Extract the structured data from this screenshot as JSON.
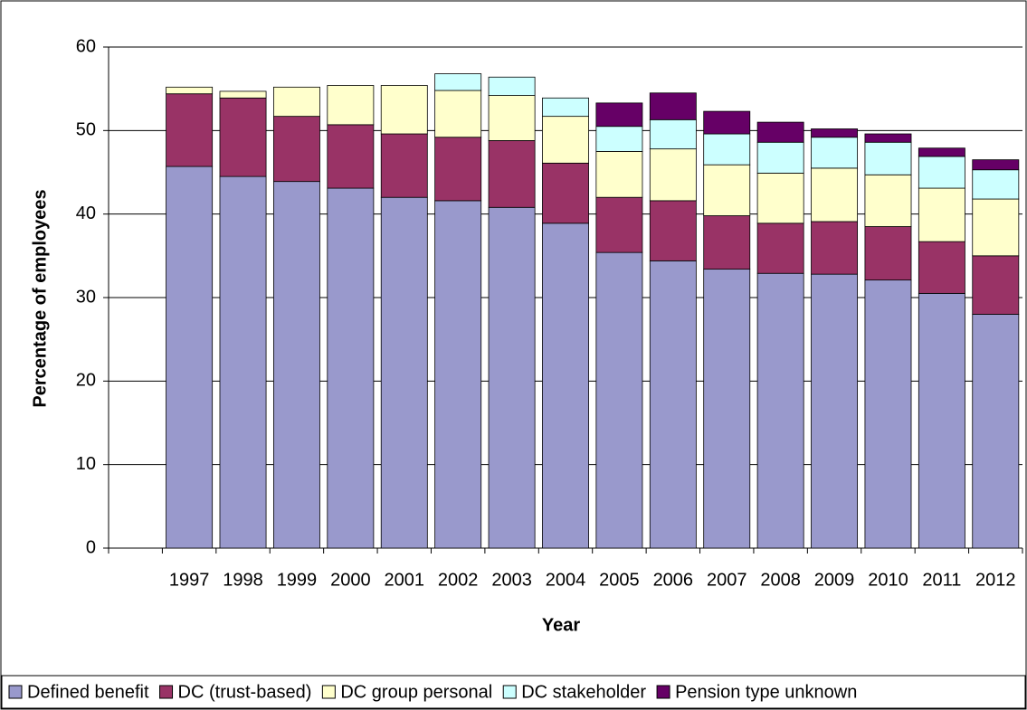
{
  "chart_data": {
    "type": "bar",
    "stacked": true,
    "x_label": "Year",
    "y_label": "Percentage of employees",
    "categories": [
      null,
      "1997",
      "1998",
      "1999",
      "2000",
      "2001",
      "2002",
      "2003",
      "2004",
      "2005",
      "2006",
      "2007",
      "2008",
      "2009",
      "2010",
      "2011",
      "2012"
    ],
    "series": [
      {
        "name": "Defined benefit",
        "color": "#9999cc",
        "values": [
          null,
          45.7,
          44.5,
          43.9,
          43.1,
          42.0,
          41.6,
          40.8,
          38.9,
          35.4,
          34.4,
          33.4,
          32.9,
          32.8,
          32.1,
          30.5,
          28.0
        ]
      },
      {
        "name": "DC (trust-based)",
        "color": "#993366",
        "values": [
          null,
          8.7,
          9.4,
          7.8,
          7.6,
          7.6,
          7.6,
          8.0,
          7.2,
          6.6,
          7.2,
          6.4,
          6.0,
          6.3,
          6.4,
          6.2,
          7.0
        ]
      },
      {
        "name": "DC group personal",
        "color": "#ffffcc",
        "values": [
          null,
          0.8,
          0.8,
          3.5,
          4.7,
          5.8,
          5.6,
          5.4,
          5.6,
          5.5,
          6.2,
          6.1,
          6.0,
          6.4,
          6.2,
          6.4,
          6.8
        ]
      },
      {
        "name": "DC stakeholder",
        "color": "#ccffff",
        "values": [
          null,
          0,
          0,
          0,
          0,
          0,
          2.0,
          2.2,
          2.2,
          3.0,
          3.5,
          3.7,
          3.7,
          3.7,
          3.9,
          3.8,
          3.5
        ]
      },
      {
        "name": "Pension type unknown",
        "color": "#660066",
        "values": [
          null,
          0,
          0,
          0,
          0,
          0,
          0,
          0,
          0,
          2.8,
          3.2,
          2.7,
          2.4,
          1.0,
          1.0,
          1.0,
          1.2
        ]
      }
    ],
    "ylim": [
      0,
      60
    ],
    "yticks": [
      0,
      10,
      20,
      30,
      40,
      50,
      60
    ],
    "grid": true,
    "legend": "bottom"
  }
}
